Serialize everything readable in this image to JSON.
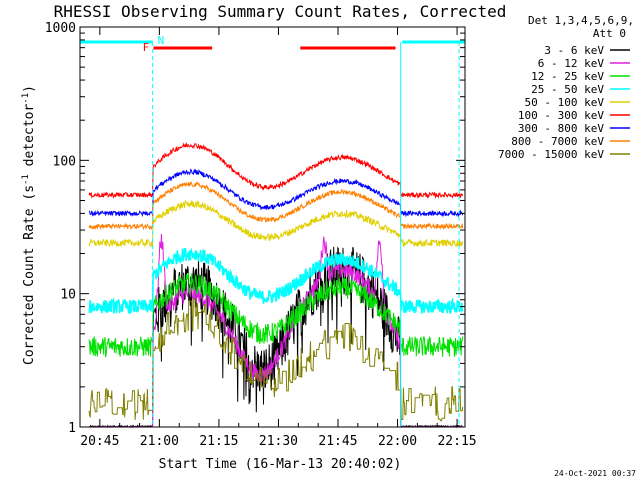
{
  "chart_data": {
    "type": "line",
    "title": "RHESSI Observing Summary Count Rates, Corrected",
    "xlabel": "Start Time (16-Mar-13 20:40:02)",
    "ylabel_html": "Corrected Count Rate (s⁻¹ detector⁻¹)",
    "ylabel_base": "Corrected Count Rate (s",
    "ylabel_sup1": "-1",
    "ylabel_mid": " detector",
    "ylabel_sup2": "-1",
    "ylabel_end": ")",
    "y_scale": "log",
    "ylim": [
      1,
      1000
    ],
    "x_range_minutes": [
      40,
      137
    ],
    "x_ticks": [
      {
        "m": 45,
        "label": "20:45"
      },
      {
        "m": 60,
        "label": "21:00"
      },
      {
        "m": 75,
        "label": "21:15"
      },
      {
        "m": 90,
        "label": "21:30"
      },
      {
        "m": 105,
        "label": "21:45"
      },
      {
        "m": 120,
        "label": "22:00"
      },
      {
        "m": 135,
        "label": "22:15"
      }
    ],
    "y_ticks": [
      {
        "v": 1,
        "label": "1"
      },
      {
        "v": 10,
        "label": "10"
      },
      {
        "v": 100,
        "label": "100"
      },
      {
        "v": 1000,
        "label": "1000"
      }
    ],
    "legend_header": [
      "Det 1,3,4,5,6,9,",
      "Att 0"
    ],
    "annotations": {
      "night_label": "N",
      "flare_label": "F",
      "night_bars": [
        [
          40,
          58.3
        ],
        [
          121.2,
          137
        ]
      ],
      "flare_bars": [
        [
          58.5,
          73.3
        ],
        [
          95.5,
          119.5
        ]
      ],
      "eclipse_lines_minutes": [
        58.3,
        120.8,
        135.5
      ]
    },
    "series": [
      {
        "name": "3 - 6 keV",
        "color": "#000000",
        "base": 1.0,
        "p1": 12,
        "p2": 15,
        "noise": 0.45,
        "gap_low": true,
        "dropouts": true
      },
      {
        "name": "6 - 12 keV",
        "color": "#e020e0",
        "base": 1.0,
        "p1": 10,
        "p2": 15,
        "noise": 0.15,
        "gap_low": true,
        "spikes": [
          [
            60.5,
            30
          ],
          [
            101.5,
            28
          ],
          [
            115.5,
            28
          ]
        ]
      },
      {
        "name": "12 - 25 keV",
        "color": "#00e000",
        "base": 4.0,
        "p1": 12,
        "p2": 11,
        "noise": 0.18
      },
      {
        "name": "25 - 50 keV",
        "color": "#00ffff",
        "base": 8.0,
        "p1": 20,
        "p2": 18,
        "noise": 0.12
      },
      {
        "name": "50 - 100 keV",
        "color": "#e0d000",
        "base": 24,
        "p1": 47,
        "p2": 40,
        "noise": 0.06
      },
      {
        "name": "100 - 300 keV",
        "color": "#ff0000",
        "base": 55,
        "p1": 130,
        "p2": 105,
        "noise": 0.04
      },
      {
        "name": "300 - 800 keV",
        "color": "#0000ff",
        "base": 40,
        "p1": 82,
        "p2": 70,
        "noise": 0.04
      },
      {
        "name": "800 - 7000 keV",
        "color": "#ff8000",
        "base": 32,
        "p1": 66,
        "p2": 58,
        "noise": 0.04
      },
      {
        "name": "7000 - 15000 keV",
        "color": "#808000",
        "base": 1.5,
        "p1": 7,
        "p2": 4.5,
        "noise": 0.3,
        "step": true
      }
    ],
    "timestamp": "24-Oct-2021 00:37"
  }
}
